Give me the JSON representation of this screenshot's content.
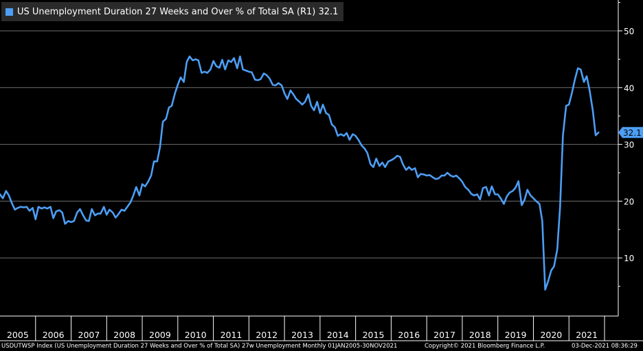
{
  "legend": {
    "label": "US Unemployment Duration 27 Weeks and Over % of Total SA  (R1) 32.1",
    "color": "#4d9ef5"
  },
  "footer": {
    "source": "USDUTWSP Index (US Unemployment Duration 27 Weeks and Over % of Total SA) 27w Unemployment  Monthly 01JAN2005-30NOV2021",
    "copyright": "Copyright© 2021 Bloomberg Finance L.P.",
    "timestamp": "03-Dec-2021 08:36:29"
  },
  "chart_data": {
    "type": "line",
    "title": "US Unemployment Duration 27 Weeks and Over % of Total SA",
    "xlabel": "",
    "ylabel": "",
    "x_range": [
      2005.0,
      2022.0
    ],
    "ylim": [
      0,
      55
    ],
    "y_ticks": [
      10,
      20,
      30,
      40,
      50
    ],
    "x_tick_labels": [
      "2005",
      "2006",
      "2007",
      "2008",
      "2009",
      "2010",
      "2011",
      "2012",
      "2013",
      "2014",
      "2015",
      "2016",
      "2017",
      "2018",
      "2019",
      "2020",
      "2021"
    ],
    "last_value_label": "32.1",
    "grid": true,
    "legend_position": "top-left",
    "series": [
      {
        "name": "US Unemployment Duration 27 Weeks and Over % of Total SA",
        "color": "#4d9ef5",
        "points": [
          [
            2005.0,
            21.2
          ],
          [
            2005.08,
            20.5
          ],
          [
            2005.17,
            21.8
          ],
          [
            2005.25,
            21.0
          ],
          [
            2005.33,
            19.7
          ],
          [
            2005.42,
            18.5
          ],
          [
            2005.5,
            18.8
          ],
          [
            2005.58,
            19.0
          ],
          [
            2005.67,
            18.9
          ],
          [
            2005.75,
            19.0
          ],
          [
            2005.83,
            18.3
          ],
          [
            2005.92,
            18.8
          ],
          [
            2006.0,
            16.8
          ],
          [
            2006.08,
            19.0
          ],
          [
            2006.17,
            18.7
          ],
          [
            2006.25,
            18.9
          ],
          [
            2006.33,
            18.7
          ],
          [
            2006.42,
            19.0
          ],
          [
            2006.5,
            17.0
          ],
          [
            2006.58,
            18.2
          ],
          [
            2006.67,
            18.4
          ],
          [
            2006.75,
            18.0
          ],
          [
            2006.83,
            16.0
          ],
          [
            2006.92,
            16.5
          ],
          [
            2007.0,
            16.3
          ],
          [
            2007.08,
            16.5
          ],
          [
            2007.17,
            18.0
          ],
          [
            2007.25,
            18.6
          ],
          [
            2007.33,
            17.6
          ],
          [
            2007.42,
            16.6
          ],
          [
            2007.5,
            16.5
          ],
          [
            2007.58,
            18.6
          ],
          [
            2007.67,
            17.5
          ],
          [
            2007.75,
            17.8
          ],
          [
            2007.83,
            17.8
          ],
          [
            2007.92,
            19.0
          ],
          [
            2008.0,
            17.6
          ],
          [
            2008.08,
            18.5
          ],
          [
            2008.17,
            18.0
          ],
          [
            2008.25,
            17.1
          ],
          [
            2008.33,
            17.7
          ],
          [
            2008.42,
            18.5
          ],
          [
            2008.5,
            18.3
          ],
          [
            2008.58,
            19.0
          ],
          [
            2008.67,
            19.8
          ],
          [
            2008.75,
            21.0
          ],
          [
            2008.83,
            22.5
          ],
          [
            2008.92,
            21.0
          ],
          [
            2009.0,
            23.0
          ],
          [
            2009.08,
            22.6
          ],
          [
            2009.17,
            23.5
          ],
          [
            2009.25,
            24.5
          ],
          [
            2009.33,
            27.0
          ],
          [
            2009.42,
            27.0
          ],
          [
            2009.5,
            29.5
          ],
          [
            2009.58,
            34.0
          ],
          [
            2009.67,
            34.5
          ],
          [
            2009.75,
            36.5
          ],
          [
            2009.83,
            36.8
          ],
          [
            2009.92,
            39.0
          ],
          [
            2010.0,
            40.5
          ],
          [
            2010.08,
            41.8
          ],
          [
            2010.17,
            41.0
          ],
          [
            2010.25,
            44.5
          ],
          [
            2010.33,
            45.5
          ],
          [
            2010.42,
            44.8
          ],
          [
            2010.5,
            45.0
          ],
          [
            2010.58,
            44.8
          ],
          [
            2010.67,
            42.6
          ],
          [
            2010.75,
            42.8
          ],
          [
            2010.83,
            42.6
          ],
          [
            2010.92,
            43.2
          ],
          [
            2011.0,
            44.7
          ],
          [
            2011.08,
            43.8
          ],
          [
            2011.17,
            43.5
          ],
          [
            2011.25,
            44.9
          ],
          [
            2011.33,
            43.2
          ],
          [
            2011.42,
            44.8
          ],
          [
            2011.5,
            44.5
          ],
          [
            2011.58,
            45.2
          ],
          [
            2011.67,
            43.4
          ],
          [
            2011.75,
            45.5
          ],
          [
            2011.83,
            43.2
          ],
          [
            2011.92,
            43.0
          ],
          [
            2012.0,
            42.8
          ],
          [
            2012.08,
            42.7
          ],
          [
            2012.17,
            41.4
          ],
          [
            2012.25,
            41.3
          ],
          [
            2012.33,
            41.5
          ],
          [
            2012.42,
            42.5
          ],
          [
            2012.5,
            42.2
          ],
          [
            2012.58,
            41.6
          ],
          [
            2012.67,
            40.5
          ],
          [
            2012.75,
            40.4
          ],
          [
            2012.83,
            40.8
          ],
          [
            2012.92,
            40.4
          ],
          [
            2013.0,
            39.0
          ],
          [
            2013.08,
            38.0
          ],
          [
            2013.17,
            39.5
          ],
          [
            2013.25,
            38.8
          ],
          [
            2013.33,
            38.0
          ],
          [
            2013.42,
            37.5
          ],
          [
            2013.5,
            37.0
          ],
          [
            2013.58,
            37.5
          ],
          [
            2013.67,
            38.8
          ],
          [
            2013.75,
            36.8
          ],
          [
            2013.83,
            36.0
          ],
          [
            2013.92,
            37.5
          ],
          [
            2014.0,
            35.5
          ],
          [
            2014.08,
            37.0
          ],
          [
            2014.17,
            35.5
          ],
          [
            2014.25,
            35.2
          ],
          [
            2014.33,
            33.5
          ],
          [
            2014.42,
            33.0
          ],
          [
            2014.5,
            31.5
          ],
          [
            2014.58,
            31.8
          ],
          [
            2014.67,
            31.5
          ],
          [
            2014.75,
            32.0
          ],
          [
            2014.83,
            30.8
          ],
          [
            2014.92,
            31.8
          ],
          [
            2015.0,
            31.5
          ],
          [
            2015.08,
            30.8
          ],
          [
            2015.17,
            29.8
          ],
          [
            2015.25,
            29.3
          ],
          [
            2015.33,
            28.5
          ],
          [
            2015.42,
            26.5
          ],
          [
            2015.5,
            26.0
          ],
          [
            2015.58,
            27.5
          ],
          [
            2015.67,
            26.2
          ],
          [
            2015.75,
            26.8
          ],
          [
            2015.83,
            26.0
          ],
          [
            2015.92,
            27.0
          ],
          [
            2016.0,
            27.2
          ],
          [
            2016.08,
            27.5
          ],
          [
            2016.17,
            28.0
          ],
          [
            2016.25,
            27.8
          ],
          [
            2016.33,
            26.5
          ],
          [
            2016.42,
            25.5
          ],
          [
            2016.5,
            26.0
          ],
          [
            2016.58,
            25.5
          ],
          [
            2016.67,
            25.8
          ],
          [
            2016.75,
            24.2
          ],
          [
            2016.83,
            24.8
          ],
          [
            2016.92,
            24.7
          ],
          [
            2017.0,
            24.5
          ],
          [
            2017.08,
            24.6
          ],
          [
            2017.17,
            24.2
          ],
          [
            2017.25,
            23.9
          ],
          [
            2017.33,
            24.0
          ],
          [
            2017.42,
            24.5
          ],
          [
            2017.5,
            24.5
          ],
          [
            2017.58,
            25.0
          ],
          [
            2017.67,
            24.5
          ],
          [
            2017.75,
            24.3
          ],
          [
            2017.83,
            24.5
          ],
          [
            2017.92,
            24.0
          ],
          [
            2018.0,
            23.4
          ],
          [
            2018.08,
            22.5
          ],
          [
            2018.17,
            22.0
          ],
          [
            2018.25,
            21.3
          ],
          [
            2018.33,
            21.0
          ],
          [
            2018.42,
            21.2
          ],
          [
            2018.5,
            20.3
          ],
          [
            2018.58,
            22.3
          ],
          [
            2018.67,
            22.5
          ],
          [
            2018.75,
            21.0
          ],
          [
            2018.83,
            22.6
          ],
          [
            2018.92,
            21.2
          ],
          [
            2019.0,
            21.2
          ],
          [
            2019.08,
            20.5
          ],
          [
            2019.17,
            19.5
          ],
          [
            2019.25,
            20.8
          ],
          [
            2019.33,
            21.5
          ],
          [
            2019.42,
            21.8
          ],
          [
            2019.5,
            22.4
          ],
          [
            2019.58,
            23.5
          ],
          [
            2019.67,
            19.3
          ],
          [
            2019.75,
            20.2
          ],
          [
            2019.83,
            22.0
          ],
          [
            2019.92,
            21.0
          ],
          [
            2020.0,
            20.5
          ],
          [
            2020.08,
            20.0
          ],
          [
            2020.17,
            19.5
          ],
          [
            2020.25,
            16.5
          ],
          [
            2020.33,
            4.4
          ],
          [
            2020.42,
            6.0
          ],
          [
            2020.5,
            7.8
          ],
          [
            2020.58,
            8.5
          ],
          [
            2020.67,
            11.5
          ],
          [
            2020.75,
            19.0
          ],
          [
            2020.83,
            31.5
          ],
          [
            2020.92,
            36.8
          ],
          [
            2021.0,
            37.0
          ],
          [
            2021.08,
            39.0
          ],
          [
            2021.17,
            41.5
          ],
          [
            2021.25,
            43.4
          ],
          [
            2021.33,
            43.2
          ],
          [
            2021.42,
            41.0
          ],
          [
            2021.5,
            42.0
          ],
          [
            2021.58,
            39.5
          ],
          [
            2021.67,
            36.0
          ],
          [
            2021.75,
            31.6
          ],
          [
            2021.83,
            32.1
          ]
        ]
      }
    ]
  }
}
